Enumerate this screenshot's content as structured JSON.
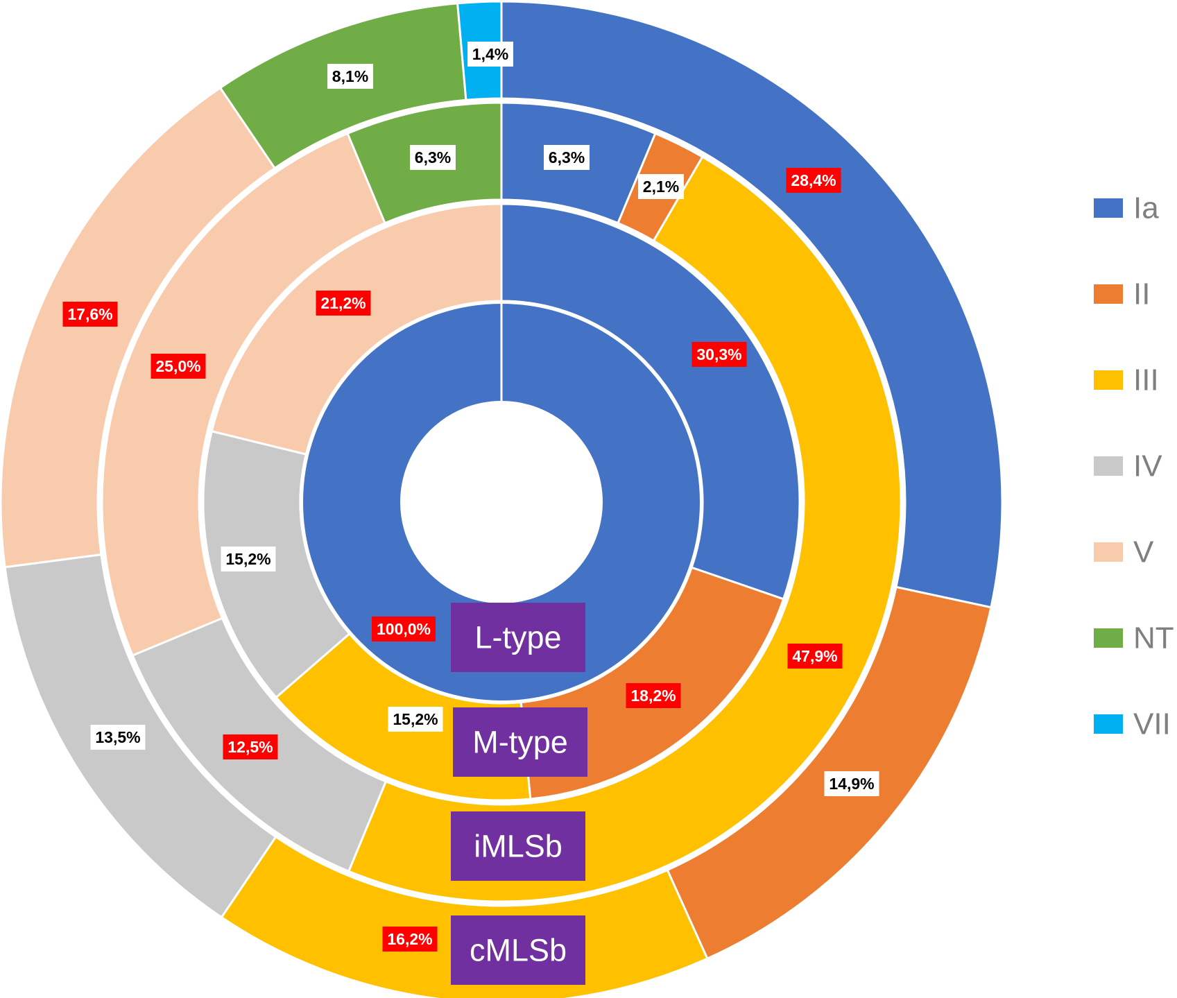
{
  "chart_data": {
    "type": "pie",
    "subtype": "multi-level-donut",
    "colors": {
      "Ia": "#4472C4",
      "II": "#ED7D31",
      "III": "#FFC000",
      "IV": "#C9C9C9",
      "V": "#F8CBAD",
      "NT": "#70AD47",
      "VII": "#00B0F0"
    },
    "legend": {
      "position": "right",
      "entries": [
        "Ia",
        "II",
        "III",
        "IV",
        "V",
        "NT",
        "VII"
      ]
    },
    "rings": [
      {
        "name": "L-type",
        "slices": [
          {
            "category": "Ia",
            "value": 100.0,
            "label": "100,0%",
            "highlight": true
          }
        ]
      },
      {
        "name": "M-type",
        "slices": [
          {
            "category": "Ia",
            "value": 30.3,
            "label": "30,3%",
            "highlight": true
          },
          {
            "category": "II",
            "value": 18.2,
            "label": "18,2%",
            "highlight": true
          },
          {
            "category": "III",
            "value": 15.2,
            "label": "15,2%",
            "highlight": false
          },
          {
            "category": "IV",
            "value": 15.2,
            "label": "15,2%",
            "highlight": false
          },
          {
            "category": "V",
            "value": 21.2,
            "label": "21,2%",
            "highlight": true
          }
        ]
      },
      {
        "name": "iMLSb",
        "slices": [
          {
            "category": "Ia",
            "value": 6.3,
            "label": "6,3%",
            "highlight": false
          },
          {
            "category": "II",
            "value": 2.1,
            "label": "2,1%",
            "highlight": false
          },
          {
            "category": "III",
            "value": 47.9,
            "label": "47,9%",
            "highlight": true
          },
          {
            "category": "IV",
            "value": 12.5,
            "label": "12,5%",
            "highlight": true
          },
          {
            "category": "V",
            "value": 25.0,
            "label": "25,0%",
            "highlight": true
          },
          {
            "category": "NT",
            "value": 6.3,
            "label": "6,3%",
            "highlight": false
          }
        ]
      },
      {
        "name": "cMLSb",
        "slices": [
          {
            "category": "Ia",
            "value": 28.4,
            "label": "28,4%",
            "highlight": true
          },
          {
            "category": "II",
            "value": 14.9,
            "label": "14,9%",
            "highlight": false
          },
          {
            "category": "III",
            "value": 16.2,
            "label": "16,2%",
            "highlight": true
          },
          {
            "category": "IV",
            "value": 13.5,
            "label": "13,5%",
            "highlight": false
          },
          {
            "category": "V",
            "value": 17.6,
            "label": "17,6%",
            "highlight": true
          },
          {
            "category": "NT",
            "value": 8.1,
            "label": "8,1%",
            "highlight": false
          },
          {
            "category": "VII",
            "value": 1.4,
            "label": "1,4%",
            "highlight": false
          }
        ]
      }
    ],
    "ring_tag_color": "#7030A0",
    "label_highlight_color": "#FF0000"
  }
}
